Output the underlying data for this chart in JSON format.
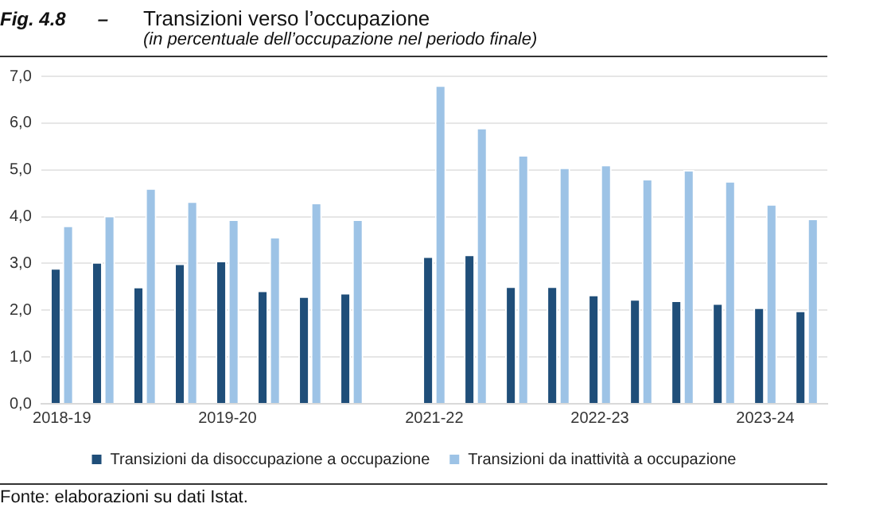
{
  "chart_data": {
    "type": "bar",
    "title": "Transizioni verso l’occupazione",
    "subtitle": "(in percentuale dell’occupazione nel periodo finale)",
    "annotations": [
      "Fig. 4.8      –",
      "Fonte: elaborazioni su dati Istat."
    ],
    "categories": [
      "2018-19",
      null,
      null,
      null,
      "2019-20",
      null,
      null,
      null,
      null,
      "2021-22",
      null,
      null,
      null,
      "2022-23",
      null,
      null,
      null,
      "2023-24",
      null
    ],
    "series": [
      {
        "name": "Transizioni da disoccupazione a occupazione",
        "color": "#1f4e79",
        "values": [
          2.9,
          3.03,
          2.5,
          3.0,
          3.06,
          2.42,
          2.3,
          2.37,
          null,
          3.15,
          3.19,
          2.51,
          2.51,
          2.33,
          2.24,
          2.21,
          2.15,
          2.06,
          1.99
        ]
      },
      {
        "name": "Transizioni da inattività a occupazione",
        "color": "#9dc3e6",
        "values": [
          3.81,
          4.02,
          4.61,
          4.33,
          3.94,
          3.57,
          4.3,
          3.94,
          null,
          6.81,
          5.9,
          5.32,
          5.05,
          5.11,
          4.81,
          5.0,
          4.76,
          4.27,
          3.96
        ]
      }
    ],
    "ylim": [
      0,
      7
    ],
    "yticks": [
      {
        "value": 0,
        "label": "0,0"
      },
      {
        "value": 1,
        "label": "1,0"
      },
      {
        "value": 2,
        "label": "2,0"
      },
      {
        "value": 3,
        "label": "3,0"
      },
      {
        "value": 4,
        "label": "4,0"
      },
      {
        "value": 5,
        "label": "5,0"
      },
      {
        "value": 6,
        "label": "6,0"
      },
      {
        "value": 7,
        "label": "7,0"
      }
    ],
    "grid": "y",
    "legend": "bottom"
  }
}
